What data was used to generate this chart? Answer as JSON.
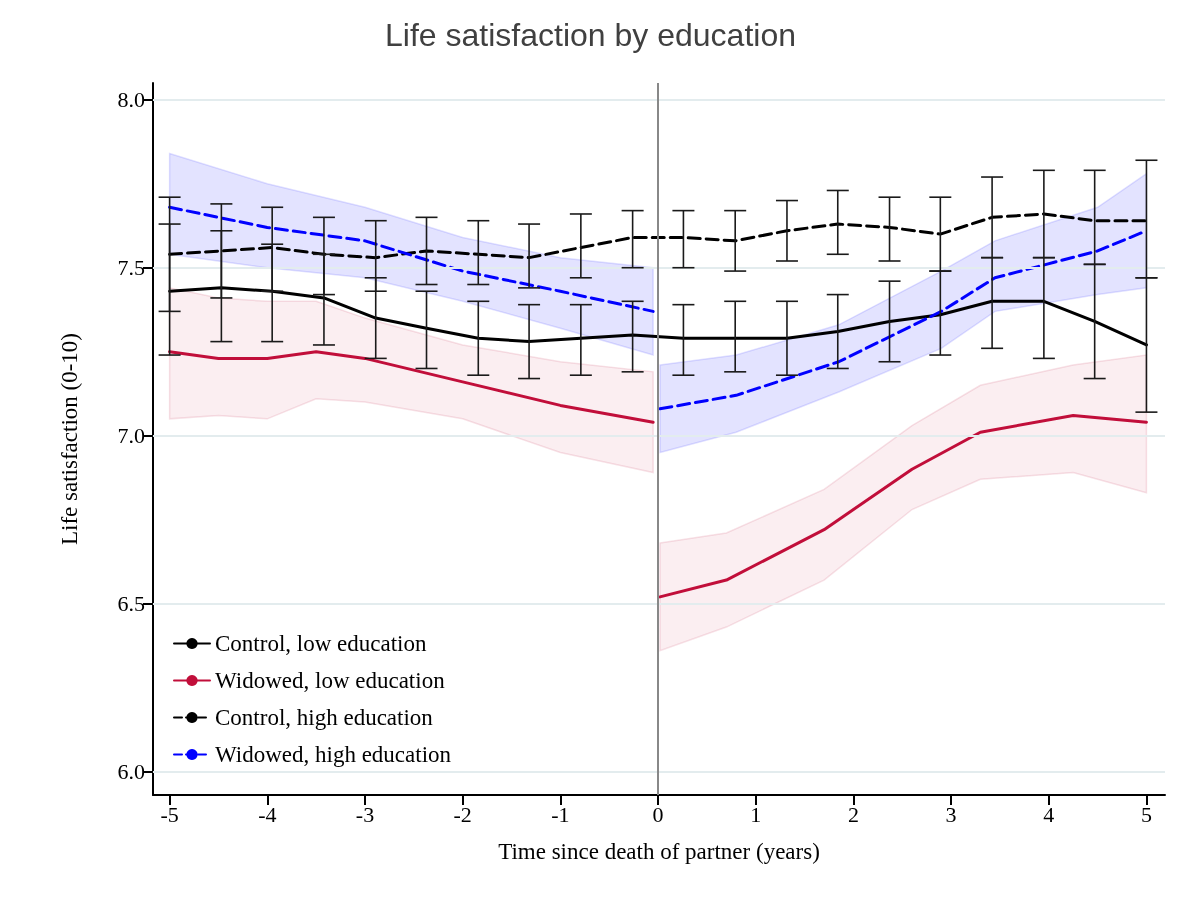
{
  "chart_data": {
    "type": "line",
    "title": "Life satisfaction by education",
    "xlabel": "Time since death of partner (years)",
    "ylabel": "Life satisfaction (0-10)",
    "xlim": [
      -5.17,
      5.19
    ],
    "xticks": [
      -5,
      -4,
      -3,
      -2,
      -1,
      0,
      1,
      2,
      3,
      4,
      5
    ],
    "ylim": [
      5.93,
      8.05
    ],
    "yticks": [
      {
        "value": 6,
        "label": "6.0"
      },
      {
        "value": 6.5,
        "label": "6.5"
      },
      {
        "value": 7,
        "label": "7.0"
      },
      {
        "value": 7.5,
        "label": "7.5"
      },
      {
        "value": 8,
        "label": "8.0"
      }
    ],
    "grid": "y",
    "legend": "bottom left",
    "marker": "none",
    "ref_lines": [
      {
        "axis": "x",
        "value": 0,
        "color": "#888888"
      }
    ],
    "series": [
      {
        "name": "Control, low education",
        "color": "#000000",
        "line_style": "solid",
        "x": [
          -5,
          -4.47,
          -3.95,
          -3.42,
          -2.89,
          -2.37,
          -1.84,
          -1.32,
          -0.79,
          -0.26,
          0.26,
          0.79,
          1.32,
          1.84,
          2.37,
          2.89,
          3.42,
          3.95,
          4.47,
          5
        ],
        "values": [
          7.43,
          7.44,
          7.43,
          7.41,
          7.35,
          7.32,
          7.29,
          7.28,
          7.29,
          7.3,
          7.29,
          7.29,
          7.29,
          7.31,
          7.34,
          7.36,
          7.4,
          7.4,
          7.34,
          7.27
        ],
        "errors": [
          [
            7.24,
            7.63
          ],
          [
            7.28,
            7.61
          ],
          [
            7.28,
            7.57
          ],
          [
            7.27,
            7.54
          ],
          [
            7.23,
            7.47
          ],
          [
            7.2,
            7.43
          ],
          [
            7.18,
            7.4
          ],
          [
            7.17,
            7.39
          ],
          [
            7.18,
            7.39
          ],
          [
            7.19,
            7.4
          ],
          [
            7.18,
            7.39
          ],
          [
            7.19,
            7.4
          ],
          [
            7.18,
            7.4
          ],
          [
            7.2,
            7.42
          ],
          [
            7.22,
            7.46
          ],
          [
            7.24,
            7.49
          ],
          [
            7.26,
            7.53
          ],
          [
            7.23,
            7.53
          ],
          [
            7.17,
            7.51
          ],
          [
            7.07,
            7.47
          ]
        ]
      },
      {
        "name": "Widowed, low education",
        "color": "#c10e3a",
        "line_style": "solid",
        "x": [
          -5,
          -4.5,
          -4,
          -3.5,
          -3,
          -2,
          -1,
          -0.05,
          0,
          0.02,
          0.7,
          1.7,
          2.6,
          3.3,
          4.25,
          5
        ],
        "values": [
          7.25,
          7.23,
          7.23,
          7.25,
          7.23,
          7.16,
          7.09,
          7.04,
          null,
          6.52,
          6.57,
          6.72,
          6.9,
          7.01,
          7.06,
          7.04
        ],
        "upper": [
          7.44,
          7.41,
          7.4,
          7.4,
          7.35,
          7.27,
          7.22,
          7.19,
          null,
          6.68,
          6.71,
          6.84,
          7.03,
          7.15,
          7.21,
          7.24
        ],
        "lower": [
          7.05,
          7.06,
          7.05,
          7.11,
          7.1,
          7.05,
          6.95,
          6.89,
          null,
          6.36,
          6.43,
          6.57,
          6.78,
          6.87,
          6.89,
          6.83
        ]
      },
      {
        "name": "Control, high education",
        "color": "#000000",
        "line_style": "dashed",
        "x": [
          -5,
          -4.47,
          -3.95,
          -3.42,
          -2.89,
          -2.37,
          -1.84,
          -1.32,
          -0.79,
          -0.26,
          0.26,
          0.79,
          1.32,
          1.84,
          2.37,
          2.89,
          3.42,
          3.95,
          4.47,
          5
        ],
        "values": [
          7.54,
          7.55,
          7.56,
          7.54,
          7.53,
          7.55,
          7.54,
          7.53,
          7.56,
          7.59,
          7.59,
          7.58,
          7.61,
          7.63,
          7.62,
          7.6,
          7.65,
          7.66,
          7.64,
          7.64
        ],
        "errors": [
          [
            7.37,
            7.71
          ],
          [
            7.41,
            7.69
          ],
          [
            7.43,
            7.68
          ],
          [
            7.42,
            7.65
          ],
          [
            7.43,
            7.64
          ],
          [
            7.45,
            7.65
          ],
          [
            7.45,
            7.64
          ],
          [
            7.44,
            7.63
          ],
          [
            7.47,
            7.66
          ],
          [
            7.5,
            7.67
          ],
          [
            7.5,
            7.67
          ],
          [
            7.49,
            7.67
          ],
          [
            7.52,
            7.7
          ],
          [
            7.54,
            7.73
          ],
          [
            7.52,
            7.71
          ],
          [
            7.49,
            7.71
          ],
          [
            7.53,
            7.77
          ],
          [
            7.53,
            7.79
          ],
          [
            7.51,
            7.79
          ],
          [
            7.47,
            7.82
          ]
        ]
      },
      {
        "name": "Widowed, high education",
        "color": "#0000ff",
        "line_style": "dashed",
        "x": [
          -5,
          -4,
          -3,
          -2,
          -1,
          -0.05,
          0,
          0.02,
          0.8,
          1.85,
          2.9,
          3.45,
          4.5,
          5
        ],
        "values": [
          7.68,
          7.62,
          7.58,
          7.49,
          7.43,
          7.37,
          null,
          7.08,
          7.12,
          7.22,
          7.37,
          7.47,
          7.55,
          7.61
        ],
        "upper": [
          7.84,
          7.75,
          7.68,
          7.59,
          7.53,
          7.5,
          null,
          7.21,
          7.24,
          7.33,
          7.49,
          7.58,
          7.68,
          7.78
        ],
        "lower": [
          7.54,
          7.5,
          7.47,
          7.4,
          7.32,
          7.24,
          null,
          6.95,
          7.01,
          7.13,
          7.26,
          7.37,
          7.42,
          7.44
        ]
      }
    ]
  }
}
